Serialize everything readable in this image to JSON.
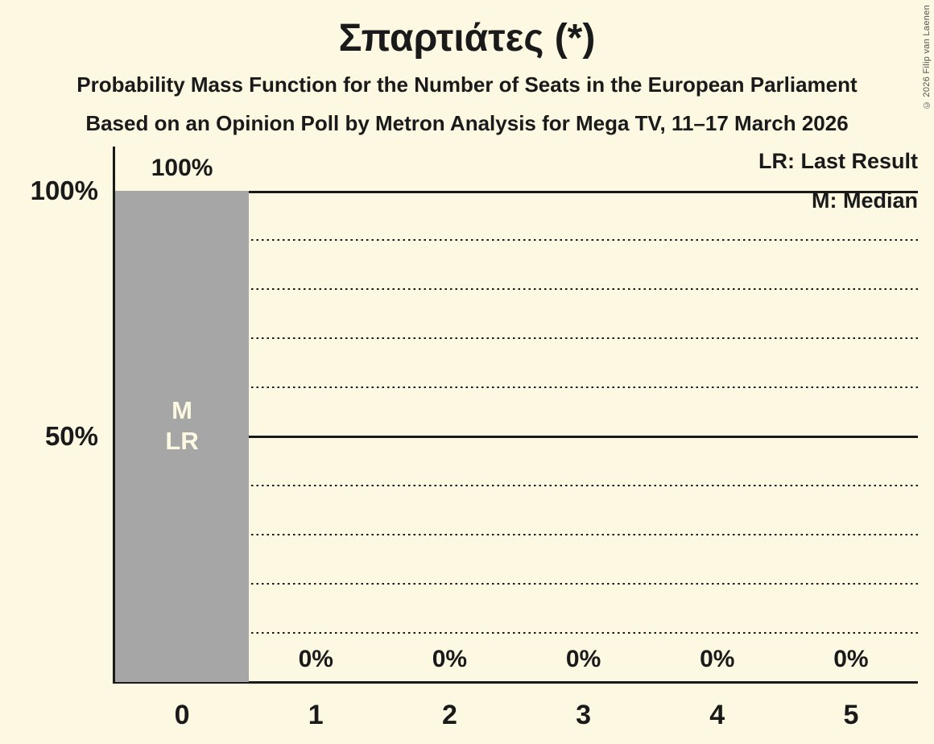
{
  "page": {
    "copyright": "© 2026 Filip van Laenen"
  },
  "chart_data": {
    "type": "bar",
    "title": "Σπαρτιάτες (*)",
    "subtitle_line1": "Probability Mass Function for the Number of Seats in the European Parliament",
    "subtitle_line2": "Based on an Opinion Poll by Metron Analysis for Mega TV, 11–17 March 2026",
    "xlabel": "",
    "ylabel": "",
    "ylim": [
      0,
      100
    ],
    "categories": [
      "0",
      "1",
      "2",
      "3",
      "4",
      "5"
    ],
    "values": [
      100,
      0,
      0,
      0,
      0,
      0
    ],
    "bar_value_labels": [
      "100%",
      "0%",
      "0%",
      "0%",
      "0%",
      "0%"
    ],
    "bar_annotations": [
      [
        "M",
        "LR"
      ],
      [],
      [],
      [],
      [],
      []
    ],
    "y_axis_ticks": [
      {
        "value": 100,
        "label": "100%"
      },
      {
        "value": 50,
        "label": "50%"
      }
    ],
    "gridlines": [
      {
        "value": 100,
        "style": "solid"
      },
      {
        "value": 90,
        "style": "dotted"
      },
      {
        "value": 80,
        "style": "dotted"
      },
      {
        "value": 70,
        "style": "dotted"
      },
      {
        "value": 60,
        "style": "dotted"
      },
      {
        "value": 50,
        "style": "solid"
      },
      {
        "value": 40,
        "style": "dotted"
      },
      {
        "value": 30,
        "style": "dotted"
      },
      {
        "value": 20,
        "style": "dotted"
      },
      {
        "value": 10,
        "style": "dotted"
      }
    ],
    "legend": [
      {
        "abbr": "LR",
        "label": "LR: Last Result"
      },
      {
        "abbr": "M",
        "label": "M: Median"
      }
    ],
    "legend_position": "top-right",
    "grid": true,
    "colors": {
      "background": "#fcf8e2",
      "bar": "#a6a6a6",
      "text": "#1a1a1a",
      "annotation_text": "#fcf8e2",
      "copyright_text": "#555555"
    }
  }
}
